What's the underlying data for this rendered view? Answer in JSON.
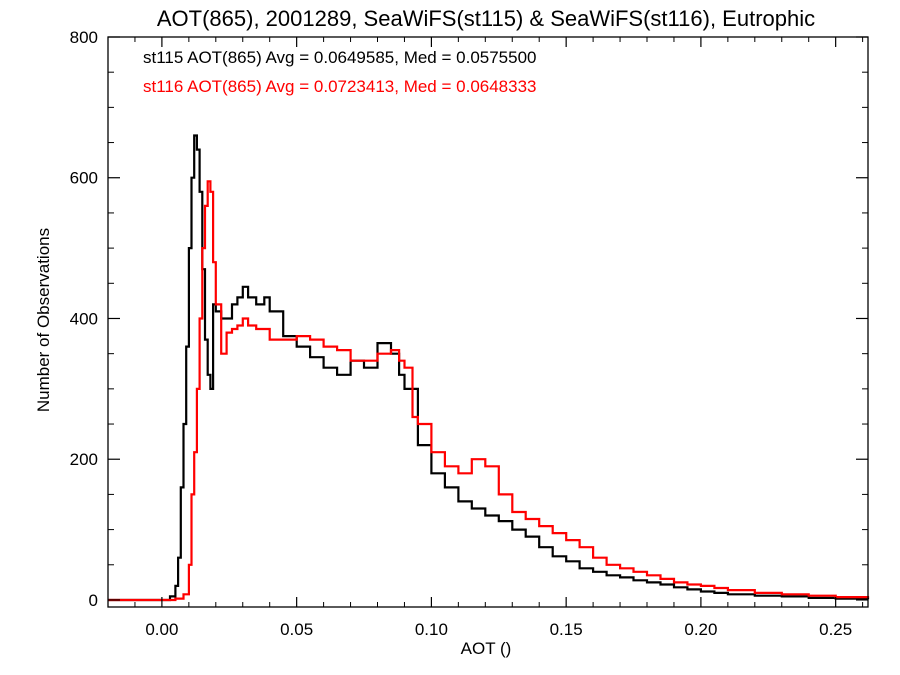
{
  "chart_data": {
    "type": "line",
    "title": "AOT(865), 2001289, SeaWiFS(st115) & SeaWiFS(st116), Eutrophic",
    "xlabel": "AOT ()",
    "ylabel": "Number of Observations",
    "xlim": [
      -0.02,
      0.262
    ],
    "ylim": [
      -10,
      800
    ],
    "xticks": [
      0.0,
      0.05,
      0.1,
      0.15,
      0.2,
      0.25
    ],
    "xtick_labels": [
      "0.00",
      "0.05",
      "0.10",
      "0.15",
      "0.20",
      "0.25"
    ],
    "yticks": [
      0,
      200,
      400,
      600,
      800
    ],
    "ytick_labels": [
      "0",
      "200",
      "400",
      "600",
      "800"
    ],
    "grid": false,
    "step_style": "histogram",
    "annotations": [
      {
        "text": "st115 AOT(865) Avg = 0.0649585, Med = 0.0575500",
        "color": "#000000"
      },
      {
        "text": "st116 AOT(865) Avg = 0.0723413, Med = 0.0648333",
        "color": "#ff0000"
      }
    ],
    "series": [
      {
        "color": "#000000",
        "x": [
          -0.02,
          0.0,
          0.003,
          0.005,
          0.006,
          0.007,
          0.008,
          0.009,
          0.01,
          0.011,
          0.012,
          0.013,
          0.014,
          0.015,
          0.016,
          0.017,
          0.018,
          0.019,
          0.02,
          0.022,
          0.024,
          0.026,
          0.028,
          0.03,
          0.032,
          0.035,
          0.038,
          0.04,
          0.045,
          0.05,
          0.055,
          0.06,
          0.065,
          0.07,
          0.075,
          0.08,
          0.085,
          0.088,
          0.09,
          0.095,
          0.1,
          0.105,
          0.11,
          0.115,
          0.12,
          0.125,
          0.13,
          0.135,
          0.14,
          0.145,
          0.15,
          0.155,
          0.16,
          0.165,
          0.17,
          0.175,
          0.18,
          0.185,
          0.19,
          0.195,
          0.2,
          0.205,
          0.21,
          0.22,
          0.23,
          0.24,
          0.25,
          0.262
        ],
        "values": [
          0,
          0,
          5,
          20,
          60,
          160,
          250,
          360,
          500,
          600,
          660,
          640,
          580,
          470,
          370,
          320,
          300,
          420,
          410,
          400,
          400,
          420,
          430,
          445,
          430,
          420,
          430,
          410,
          375,
          360,
          345,
          330,
          320,
          340,
          330,
          365,
          350,
          320,
          300,
          220,
          180,
          160,
          140,
          130,
          120,
          112,
          100,
          90,
          75,
          62,
          55,
          45,
          40,
          35,
          32,
          28,
          25,
          22,
          18,
          15,
          12,
          10,
          8,
          6,
          5,
          3,
          2,
          1
        ]
      },
      {
        "color": "#ff0000",
        "x": [
          -0.02,
          0.0,
          0.005,
          0.008,
          0.01,
          0.011,
          0.012,
          0.013,
          0.014,
          0.015,
          0.016,
          0.017,
          0.018,
          0.019,
          0.02,
          0.022,
          0.024,
          0.026,
          0.028,
          0.03,
          0.032,
          0.035,
          0.04,
          0.045,
          0.05,
          0.055,
          0.06,
          0.065,
          0.07,
          0.075,
          0.08,
          0.085,
          0.088,
          0.09,
          0.093,
          0.095,
          0.1,
          0.105,
          0.11,
          0.115,
          0.12,
          0.125,
          0.13,
          0.135,
          0.14,
          0.145,
          0.15,
          0.155,
          0.16,
          0.165,
          0.17,
          0.175,
          0.18,
          0.185,
          0.19,
          0.195,
          0.2,
          0.205,
          0.21,
          0.22,
          0.23,
          0.24,
          0.25,
          0.262
        ],
        "values": [
          0,
          0,
          2,
          8,
          50,
          150,
          210,
          300,
          400,
          500,
          560,
          595,
          580,
          480,
          420,
          350,
          380,
          385,
          390,
          400,
          390,
          385,
          370,
          370,
          375,
          370,
          360,
          355,
          340,
          340,
          350,
          355,
          340,
          330,
          260,
          250,
          210,
          190,
          180,
          200,
          190,
          150,
          125,
          115,
          105,
          95,
          85,
          75,
          60,
          50,
          45,
          40,
          35,
          30,
          25,
          22,
          20,
          17,
          14,
          10,
          8,
          6,
          4,
          3
        ]
      }
    ]
  }
}
